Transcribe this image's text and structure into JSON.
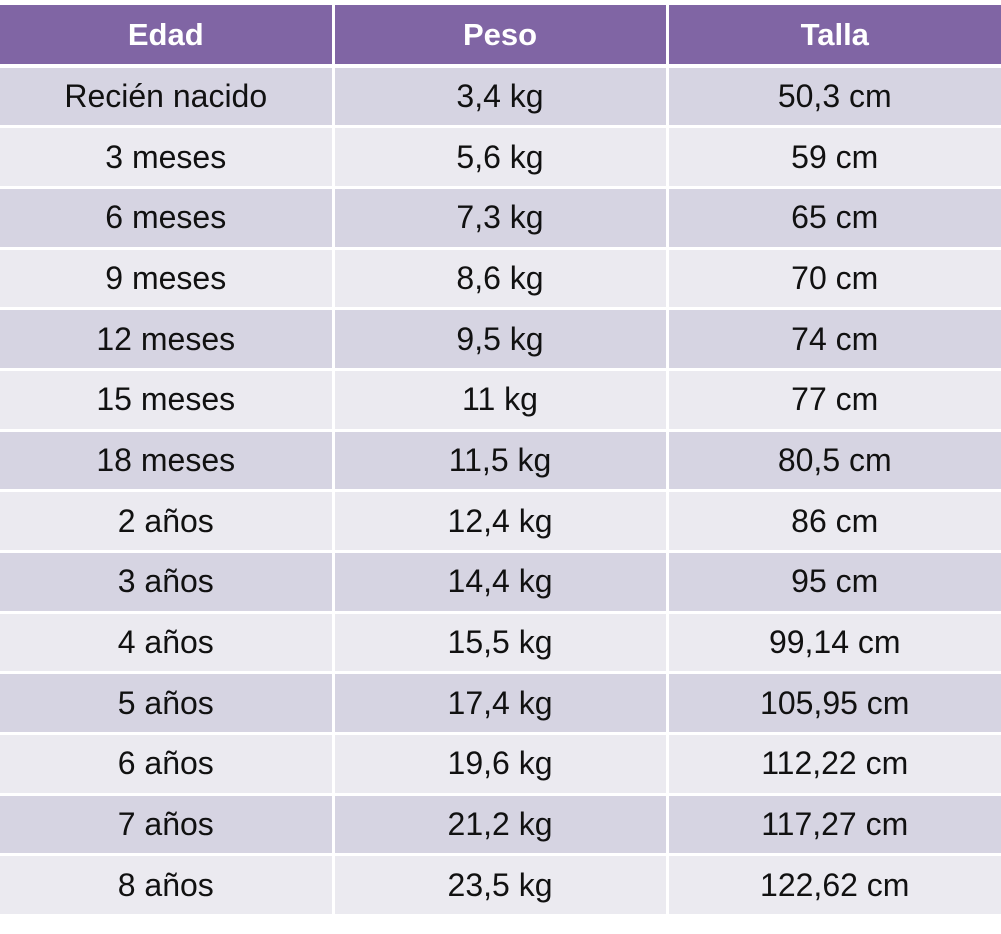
{
  "table": {
    "headers": [
      "Edad",
      "Peso",
      "Talla"
    ],
    "rows": [
      [
        "Recién nacido",
        "3,4 kg",
        "50,3 cm"
      ],
      [
        "3 meses",
        "5,6 kg",
        "59 cm"
      ],
      [
        "6 meses",
        "7,3 kg",
        "65 cm"
      ],
      [
        "9 meses",
        "8,6 kg",
        "70 cm"
      ],
      [
        "12 meses",
        "9,5 kg",
        "74 cm"
      ],
      [
        "15 meses",
        "11 kg",
        "77 cm"
      ],
      [
        "18 meses",
        "11,5 kg",
        "80,5 cm"
      ],
      [
        "2 años",
        "12,4 kg",
        "86 cm"
      ],
      [
        "3 años",
        "14,4 kg",
        "95 cm"
      ],
      [
        "4 años",
        "15,5 kg",
        "99,14 cm"
      ],
      [
        "5 años",
        "17,4 kg",
        "105,95 cm"
      ],
      [
        "6 años",
        "19,6 kg",
        "112,22 cm"
      ],
      [
        "7 años",
        "21,2 kg",
        "117,27 cm"
      ],
      [
        "8 años",
        "23,5 kg",
        "122,62 cm"
      ]
    ]
  },
  "colors": {
    "header_bg": "#8065a4",
    "row_odd_bg": "#d6d4e2",
    "row_even_bg": "#ebeaf0"
  }
}
